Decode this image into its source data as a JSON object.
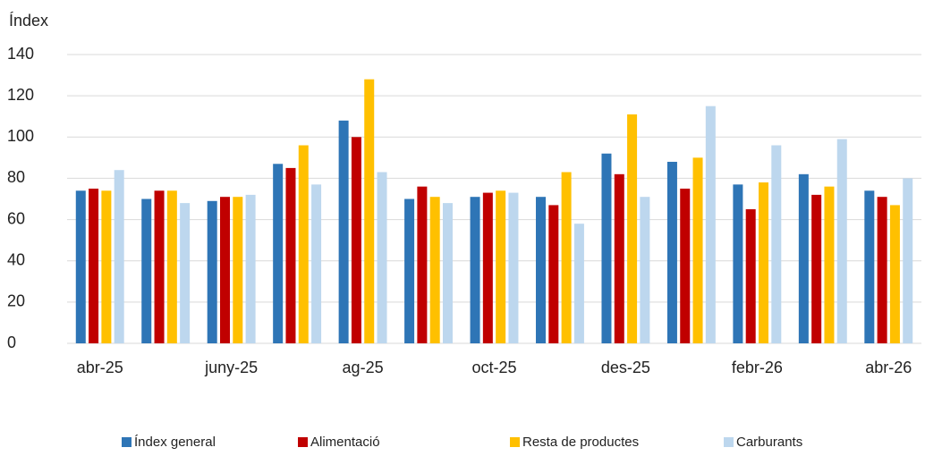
{
  "chart_data": {
    "type": "bar",
    "y_label": "Índex",
    "categories": [
      "abr-25",
      null,
      "juny-25",
      null,
      "ag-25",
      null,
      "oct-25",
      null,
      "des-25",
      null,
      "febr-26",
      null,
      "abr-26"
    ],
    "series": [
      {
        "name": "Índex general",
        "color": "#2e75b6",
        "values": [
          74,
          70,
          69,
          87,
          108,
          70,
          71,
          71,
          92,
          88,
          77,
          82,
          74
        ]
      },
      {
        "name": "Alimentació",
        "color": "#c00000",
        "values": [
          75,
          74,
          71,
          85,
          100,
          76,
          73,
          67,
          82,
          75,
          65,
          72,
          71
        ]
      },
      {
        "name": "Resta de productes",
        "color": "#ffc000",
        "values": [
          74,
          74,
          71,
          96,
          128,
          71,
          74,
          83,
          111,
          90,
          78,
          76,
          67
        ]
      },
      {
        "name": "Carburants",
        "color": "#bdd7ee",
        "values": [
          84,
          68,
          72,
          77,
          83,
          68,
          73,
          58,
          71,
          115,
          96,
          99,
          80
        ]
      }
    ],
    "ylim": [
      0,
      140
    ],
    "yticks": [
      0,
      20,
      40,
      60,
      80,
      100,
      120,
      140
    ],
    "grid": true
  }
}
